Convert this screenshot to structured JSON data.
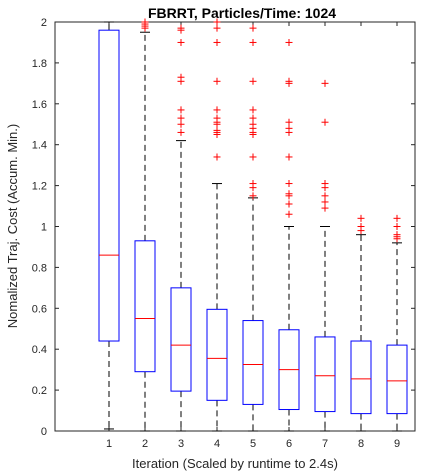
{
  "chart_data": {
    "type": "box",
    "title": "FBRRT, Particles/Time: 1024",
    "xlabel": "Iteration (Scaled by runtime to 2.4s)",
    "ylabel": "Nomalized Traj. Cost (Accum. Min.)",
    "xlim": [
      -0.5,
      9.5
    ],
    "ylim": [
      0,
      2
    ],
    "x_ticks": [
      1,
      2,
      3,
      4,
      5,
      6,
      7,
      8,
      9
    ],
    "y_ticks": [
      0,
      0.2,
      0.4,
      0.6,
      0.8,
      1,
      1.2,
      1.4,
      1.6,
      1.8,
      2
    ],
    "y_tick_labels": [
      "0",
      "0.2",
      "0.4",
      "0.6",
      "0.8",
      "1",
      "1.2",
      "1.4",
      "1.6",
      "1.8",
      "2"
    ],
    "colors": {
      "box": "#0000ff",
      "median": "#ff0000",
      "whisker": "#000000",
      "outlier": "#ff0000"
    },
    "boxes": [
      {
        "x": 1,
        "q1": 0.44,
        "median": 0.86,
        "q3": 1.96,
        "whisker_low": 0.01,
        "whisker_high": 2.0,
        "outliers": []
      },
      {
        "x": 2,
        "q1": 0.29,
        "median": 0.55,
        "q3": 0.93,
        "whisker_low": 0.0,
        "whisker_high": 1.95,
        "outliers": [
          1.97,
          1.98,
          1.99,
          2.0
        ]
      },
      {
        "x": 3,
        "q1": 0.195,
        "median": 0.42,
        "q3": 0.7,
        "whisker_low": 0.0,
        "whisker_high": 1.42,
        "outliers": [
          1.46,
          1.5,
          1.53,
          1.57,
          1.71,
          1.73,
          1.9,
          1.96,
          1.97
        ]
      },
      {
        "x": 4,
        "q1": 0.15,
        "median": 0.355,
        "q3": 0.595,
        "whisker_low": 0.0,
        "whisker_high": 1.21,
        "outliers": [
          1.34,
          1.45,
          1.46,
          1.47,
          1.5,
          1.51,
          1.53,
          1.57,
          1.71,
          1.9,
          1.97,
          2.0
        ]
      },
      {
        "x": 5,
        "q1": 0.13,
        "median": 0.325,
        "q3": 0.54,
        "whisker_low": 0.0,
        "whisker_high": 1.14,
        "outliers": [
          1.15,
          1.19,
          1.21,
          1.34,
          1.45,
          1.46,
          1.48,
          1.5,
          1.53,
          1.57,
          1.71,
          1.9,
          1.97
        ]
      },
      {
        "x": 6,
        "q1": 0.105,
        "median": 0.3,
        "q3": 0.495,
        "whisker_low": 0.0,
        "whisker_high": 1.0,
        "outliers": [
          1.06,
          1.11,
          1.15,
          1.16,
          1.21,
          1.34,
          1.46,
          1.48,
          1.51,
          1.7,
          1.71,
          1.9
        ]
      },
      {
        "x": 7,
        "q1": 0.095,
        "median": 0.27,
        "q3": 0.46,
        "whisker_low": 0.0,
        "whisker_high": 1.0,
        "outliers": [
          1.09,
          1.12,
          1.15,
          1.19,
          1.21,
          1.51,
          1.7
        ]
      },
      {
        "x": 8,
        "q1": 0.085,
        "median": 0.255,
        "q3": 0.44,
        "whisker_low": 0.0,
        "whisker_high": 0.96,
        "outliers": [
          0.98,
          1.0,
          1.04
        ]
      },
      {
        "x": 9,
        "q1": 0.085,
        "median": 0.245,
        "q3": 0.42,
        "whisker_low": 0.0,
        "whisker_high": 0.92,
        "outliers": [
          0.94,
          0.95,
          0.96,
          1.0,
          1.04
        ]
      }
    ]
  }
}
